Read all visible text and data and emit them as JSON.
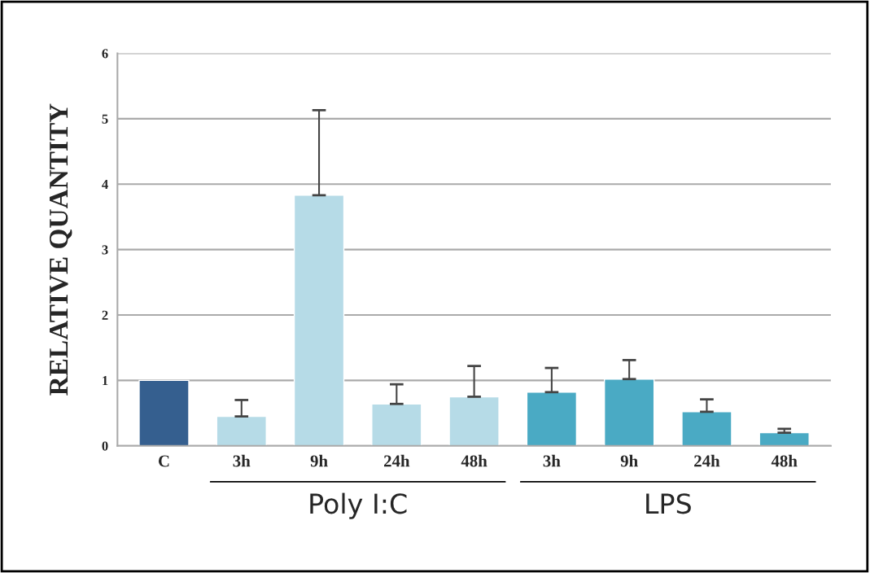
{
  "chart_data": {
    "type": "bar",
    "ylabel": "RELATIVE QUANTITY",
    "categories": [
      "C",
      "3h",
      "9h",
      "24h",
      "48h",
      "3h",
      "9h",
      "24h",
      "48h"
    ],
    "values": [
      1.0,
      0.45,
      3.83,
      0.64,
      0.75,
      0.82,
      1.02,
      0.52,
      0.2
    ],
    "errors": [
      null,
      [
        0.45,
        0.7
      ],
      [
        3.83,
        5.13
      ],
      [
        0.64,
        0.94
      ],
      [
        0.75,
        1.22
      ],
      [
        0.82,
        1.19
      ],
      [
        1.02,
        1.31
      ],
      [
        0.52,
        0.71
      ],
      [
        0.2,
        0.26
      ]
    ],
    "colors": [
      "#355f8f",
      "#b6dbe7",
      "#b6dbe7",
      "#b6dbe7",
      "#b6dbe7",
      "#4aaac4",
      "#4aaac4",
      "#4aaac4",
      "#4aaac4"
    ],
    "annotations": [
      "Poly I:C",
      "LPS"
    ],
    "ylim": [
      0,
      6
    ],
    "yticks": [
      0,
      1,
      2,
      3,
      4,
      5,
      6
    ],
    "grid": "y"
  }
}
